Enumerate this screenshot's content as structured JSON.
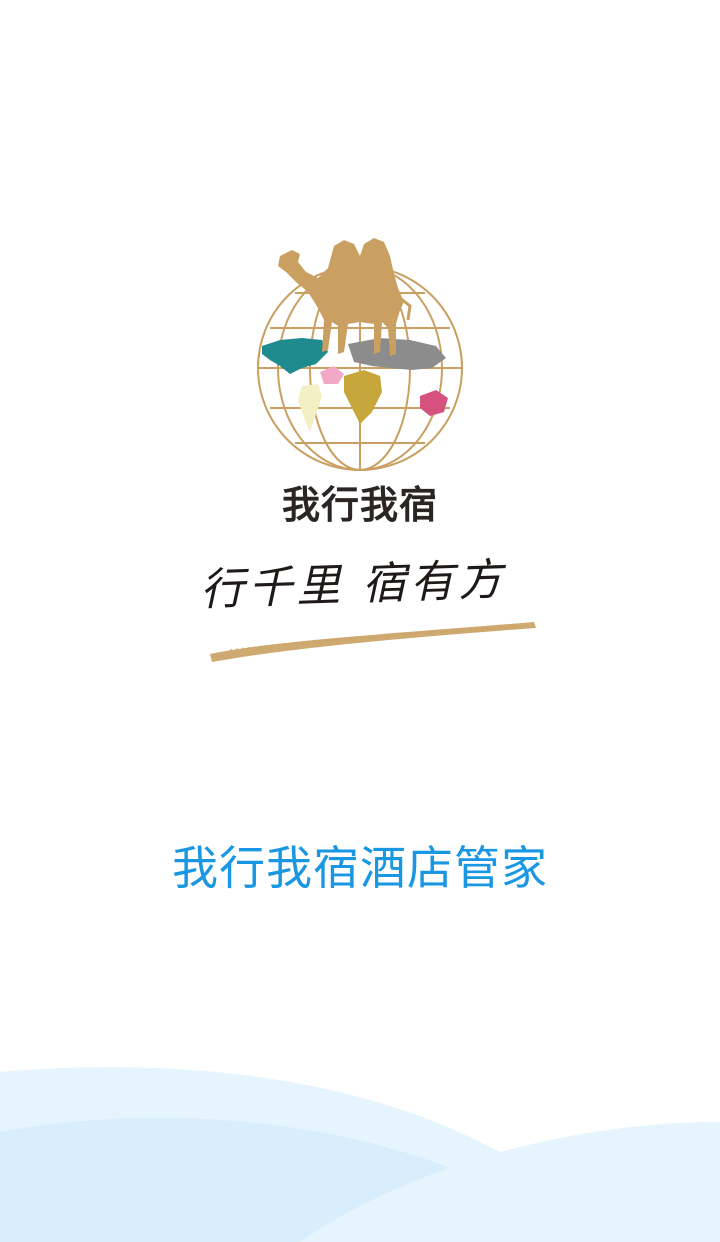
{
  "splash": {
    "brand_name": "我行我宿",
    "slogan": "行千里  宿有方",
    "app_title": "我行我宿酒店管家"
  },
  "logo": {
    "icon": "camel-globe-logo-icon",
    "lettering": "我行我宿"
  },
  "colors": {
    "background": "#ffffff",
    "title_blue": "#1a97e2",
    "camel_gold": "#c9a061",
    "globe_line": "#c9a061",
    "wave_light": "#e6f4fd",
    "wave_mid": "#d4ecfb",
    "brand_text": "#2b2524"
  }
}
